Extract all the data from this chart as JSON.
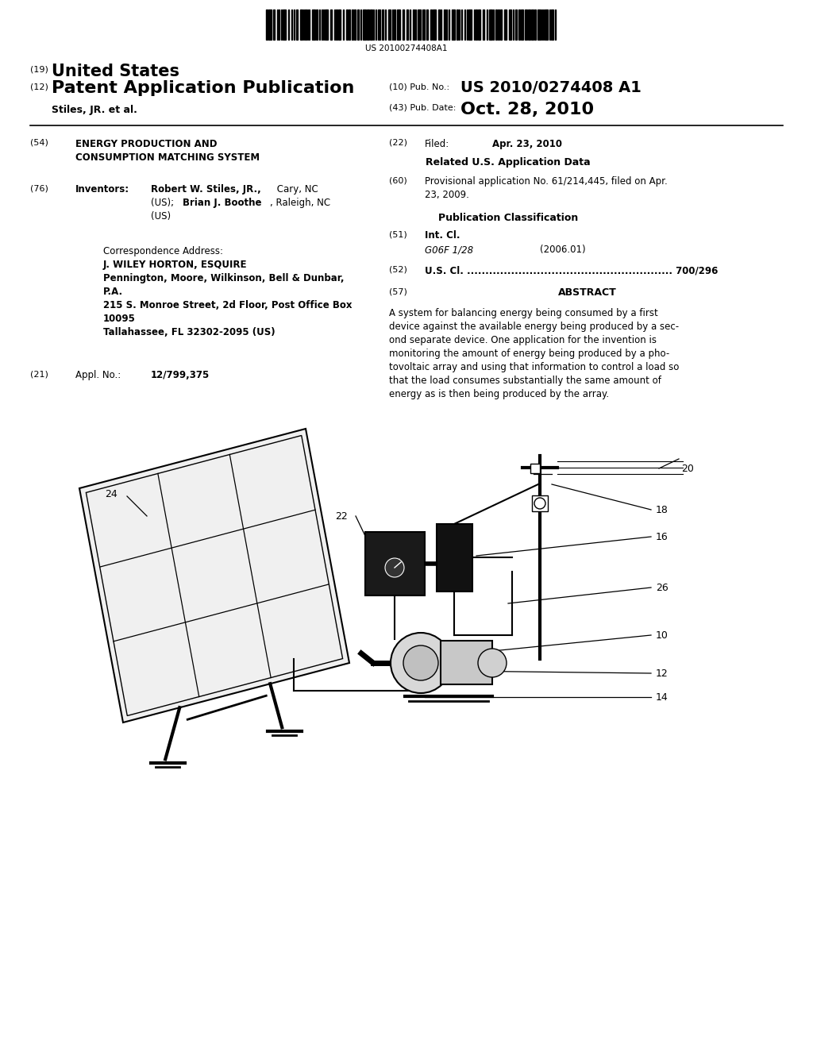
{
  "background_color": "#ffffff",
  "barcode_text": "US 20100274408A1",
  "header_19": "(19)",
  "header_19_bold": "United States",
  "header_12": "(12)",
  "header_12_bold": "Patent Application Publication",
  "header_10_label": "(10) Pub. No.:",
  "header_10_value": "US 2010/0274408 A1",
  "header_43_label": "(43) Pub. Date:",
  "header_43_value": "Oct. 28, 2010",
  "inventor_name": "Stiles, JR. et al.",
  "field_54_label": "(54)",
  "field_54_title1": "ENERGY PRODUCTION AND",
  "field_54_title2": "CONSUMPTION MATCHING SYSTEM",
  "field_76_label": "(76)",
  "field_76_name": "Inventors:",
  "field_76_line1": "Robert W. Stiles, JR., Cary, NC",
  "field_76_line2_a": "(US); ",
  "field_76_line2_b": "Brian J. Boothe",
  "field_76_line2_c": ", Raleigh, NC",
  "field_76_line3": "(US)",
  "corr_label": "Correspondence Address:",
  "corr_line1": "J. WILEY HORTON, ESQUIRE",
  "corr_line2": "Pennington, Moore, Wilkinson, Bell & Dunbar,",
  "corr_line3": "P.A.",
  "corr_line4": "215 S. Monroe Street, 2d Floor, Post Office Box",
  "corr_line5": "10095",
  "corr_line6": "Tallahassee, FL 32302-2095 (US)",
  "field_21_label": "(21)",
  "field_21_name": "Appl. No.:",
  "field_21_value": "12/799,375",
  "field_22_label": "(22)",
  "field_22_name": "Filed:",
  "field_22_value": "Apr. 23, 2010",
  "related_header": "Related U.S. Application Data",
  "field_60_label": "(60)",
  "field_60_line1": "Provisional application No. 61/214,445, filed on Apr.",
  "field_60_line2": "23, 2009.",
  "pub_class_header": "Publication Classification",
  "field_51_label": "(51)",
  "field_51_name": "Int. Cl.",
  "field_51_class": "G06F 1/28",
  "field_51_year": "(2006.01)",
  "field_52_label": "(52)",
  "field_52_text": "U.S. Cl. ........................................................ 700/296",
  "field_57_label": "(57)",
  "field_57_header": "ABSTRACT",
  "abstract_lines": [
    "A system for balancing energy being consumed by a first",
    "device against the available energy being produced by a sec-",
    "ond separate device. One application for the invention is",
    "monitoring the amount of energy being produced by a pho-",
    "tovoltaic array and using that information to control a load so",
    "that the load consumes substantially the same amount of",
    "energy as is then being produced by the array."
  ]
}
